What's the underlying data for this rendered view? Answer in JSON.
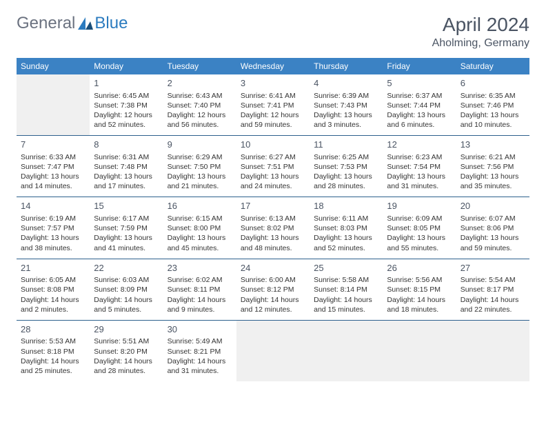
{
  "logo": {
    "general": "General",
    "blue": "Blue"
  },
  "title": "April 2024",
  "location": "Aholming, Germany",
  "colors": {
    "header_bg": "#3b82c4",
    "header_text": "#ffffff",
    "border": "#2b5f8c",
    "title_text": "#4a5463",
    "body_text": "#333333",
    "empty_bg": "#f0f0f0",
    "logo_gray": "#6b7280",
    "logo_blue": "#2b7bbf"
  },
  "weekdays": [
    "Sunday",
    "Monday",
    "Tuesday",
    "Wednesday",
    "Thursday",
    "Friday",
    "Saturday"
  ],
  "weeks": [
    [
      null,
      {
        "n": "1",
        "sr": "Sunrise: 6:45 AM",
        "ss": "Sunset: 7:38 PM",
        "d1": "Daylight: 12 hours",
        "d2": "and 52 minutes."
      },
      {
        "n": "2",
        "sr": "Sunrise: 6:43 AM",
        "ss": "Sunset: 7:40 PM",
        "d1": "Daylight: 12 hours",
        "d2": "and 56 minutes."
      },
      {
        "n": "3",
        "sr": "Sunrise: 6:41 AM",
        "ss": "Sunset: 7:41 PM",
        "d1": "Daylight: 12 hours",
        "d2": "and 59 minutes."
      },
      {
        "n": "4",
        "sr": "Sunrise: 6:39 AM",
        "ss": "Sunset: 7:43 PM",
        "d1": "Daylight: 13 hours",
        "d2": "and 3 minutes."
      },
      {
        "n": "5",
        "sr": "Sunrise: 6:37 AM",
        "ss": "Sunset: 7:44 PM",
        "d1": "Daylight: 13 hours",
        "d2": "and 6 minutes."
      },
      {
        "n": "6",
        "sr": "Sunrise: 6:35 AM",
        "ss": "Sunset: 7:46 PM",
        "d1": "Daylight: 13 hours",
        "d2": "and 10 minutes."
      }
    ],
    [
      {
        "n": "7",
        "sr": "Sunrise: 6:33 AM",
        "ss": "Sunset: 7:47 PM",
        "d1": "Daylight: 13 hours",
        "d2": "and 14 minutes."
      },
      {
        "n": "8",
        "sr": "Sunrise: 6:31 AM",
        "ss": "Sunset: 7:48 PM",
        "d1": "Daylight: 13 hours",
        "d2": "and 17 minutes."
      },
      {
        "n": "9",
        "sr": "Sunrise: 6:29 AM",
        "ss": "Sunset: 7:50 PM",
        "d1": "Daylight: 13 hours",
        "d2": "and 21 minutes."
      },
      {
        "n": "10",
        "sr": "Sunrise: 6:27 AM",
        "ss": "Sunset: 7:51 PM",
        "d1": "Daylight: 13 hours",
        "d2": "and 24 minutes."
      },
      {
        "n": "11",
        "sr": "Sunrise: 6:25 AM",
        "ss": "Sunset: 7:53 PM",
        "d1": "Daylight: 13 hours",
        "d2": "and 28 minutes."
      },
      {
        "n": "12",
        "sr": "Sunrise: 6:23 AM",
        "ss": "Sunset: 7:54 PM",
        "d1": "Daylight: 13 hours",
        "d2": "and 31 minutes."
      },
      {
        "n": "13",
        "sr": "Sunrise: 6:21 AM",
        "ss": "Sunset: 7:56 PM",
        "d1": "Daylight: 13 hours",
        "d2": "and 35 minutes."
      }
    ],
    [
      {
        "n": "14",
        "sr": "Sunrise: 6:19 AM",
        "ss": "Sunset: 7:57 PM",
        "d1": "Daylight: 13 hours",
        "d2": "and 38 minutes."
      },
      {
        "n": "15",
        "sr": "Sunrise: 6:17 AM",
        "ss": "Sunset: 7:59 PM",
        "d1": "Daylight: 13 hours",
        "d2": "and 41 minutes."
      },
      {
        "n": "16",
        "sr": "Sunrise: 6:15 AM",
        "ss": "Sunset: 8:00 PM",
        "d1": "Daylight: 13 hours",
        "d2": "and 45 minutes."
      },
      {
        "n": "17",
        "sr": "Sunrise: 6:13 AM",
        "ss": "Sunset: 8:02 PM",
        "d1": "Daylight: 13 hours",
        "d2": "and 48 minutes."
      },
      {
        "n": "18",
        "sr": "Sunrise: 6:11 AM",
        "ss": "Sunset: 8:03 PM",
        "d1": "Daylight: 13 hours",
        "d2": "and 52 minutes."
      },
      {
        "n": "19",
        "sr": "Sunrise: 6:09 AM",
        "ss": "Sunset: 8:05 PM",
        "d1": "Daylight: 13 hours",
        "d2": "and 55 minutes."
      },
      {
        "n": "20",
        "sr": "Sunrise: 6:07 AM",
        "ss": "Sunset: 8:06 PM",
        "d1": "Daylight: 13 hours",
        "d2": "and 59 minutes."
      }
    ],
    [
      {
        "n": "21",
        "sr": "Sunrise: 6:05 AM",
        "ss": "Sunset: 8:08 PM",
        "d1": "Daylight: 14 hours",
        "d2": "and 2 minutes."
      },
      {
        "n": "22",
        "sr": "Sunrise: 6:03 AM",
        "ss": "Sunset: 8:09 PM",
        "d1": "Daylight: 14 hours",
        "d2": "and 5 minutes."
      },
      {
        "n": "23",
        "sr": "Sunrise: 6:02 AM",
        "ss": "Sunset: 8:11 PM",
        "d1": "Daylight: 14 hours",
        "d2": "and 9 minutes."
      },
      {
        "n": "24",
        "sr": "Sunrise: 6:00 AM",
        "ss": "Sunset: 8:12 PM",
        "d1": "Daylight: 14 hours",
        "d2": "and 12 minutes."
      },
      {
        "n": "25",
        "sr": "Sunrise: 5:58 AM",
        "ss": "Sunset: 8:14 PM",
        "d1": "Daylight: 14 hours",
        "d2": "and 15 minutes."
      },
      {
        "n": "26",
        "sr": "Sunrise: 5:56 AM",
        "ss": "Sunset: 8:15 PM",
        "d1": "Daylight: 14 hours",
        "d2": "and 18 minutes."
      },
      {
        "n": "27",
        "sr": "Sunrise: 5:54 AM",
        "ss": "Sunset: 8:17 PM",
        "d1": "Daylight: 14 hours",
        "d2": "and 22 minutes."
      }
    ],
    [
      {
        "n": "28",
        "sr": "Sunrise: 5:53 AM",
        "ss": "Sunset: 8:18 PM",
        "d1": "Daylight: 14 hours",
        "d2": "and 25 minutes."
      },
      {
        "n": "29",
        "sr": "Sunrise: 5:51 AM",
        "ss": "Sunset: 8:20 PM",
        "d1": "Daylight: 14 hours",
        "d2": "and 28 minutes."
      },
      {
        "n": "30",
        "sr": "Sunrise: 5:49 AM",
        "ss": "Sunset: 8:21 PM",
        "d1": "Daylight: 14 hours",
        "d2": "and 31 minutes."
      },
      null,
      null,
      null,
      null
    ]
  ]
}
